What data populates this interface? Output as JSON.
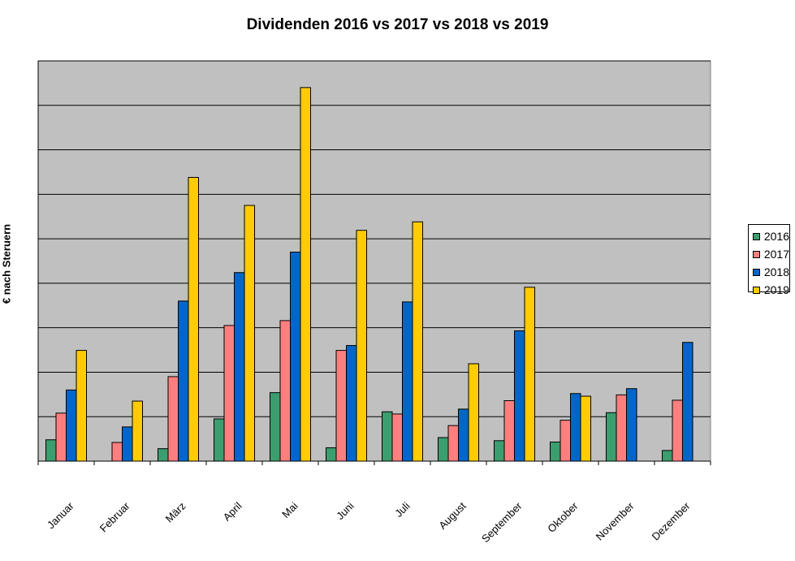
{
  "chart_data": {
    "type": "bar",
    "title": "Dividenden 2016 vs 2017 vs 2018 vs 2019",
    "xlabel": "",
    "ylabel": "€ nach Steruern",
    "ylim": [
      0,
      9
    ],
    "grid": true,
    "legend_position": "right",
    "categories": [
      "Januar",
      "Februar",
      "März",
      "April",
      "Mai",
      "Juni",
      "Juli",
      "August",
      "September",
      "Oktober",
      "November",
      "Dezember"
    ],
    "series": [
      {
        "name": "2016",
        "color": "#3a9e6e",
        "values": [
          0.48,
          null,
          0.28,
          0.95,
          1.54,
          0.3,
          1.11,
          0.53,
          0.46,
          0.43,
          1.09,
          0.24
        ]
      },
      {
        "name": "2017",
        "color": "#ff7f7f",
        "values": [
          1.08,
          0.42,
          1.9,
          3.05,
          3.16,
          2.49,
          1.06,
          0.8,
          1.36,
          0.92,
          1.49,
          1.37
        ]
      },
      {
        "name": "2018",
        "color": "#0066cc",
        "values": [
          1.6,
          0.77,
          3.6,
          4.24,
          4.7,
          2.6,
          3.58,
          1.17,
          2.93,
          1.52,
          1.63,
          2.67
        ]
      },
      {
        "name": "2019",
        "color": "#ffcc00",
        "values": [
          2.49,
          1.35,
          6.38,
          5.75,
          8.4,
          5.19,
          5.38,
          2.19,
          3.91,
          1.46,
          null,
          null
        ]
      }
    ]
  }
}
